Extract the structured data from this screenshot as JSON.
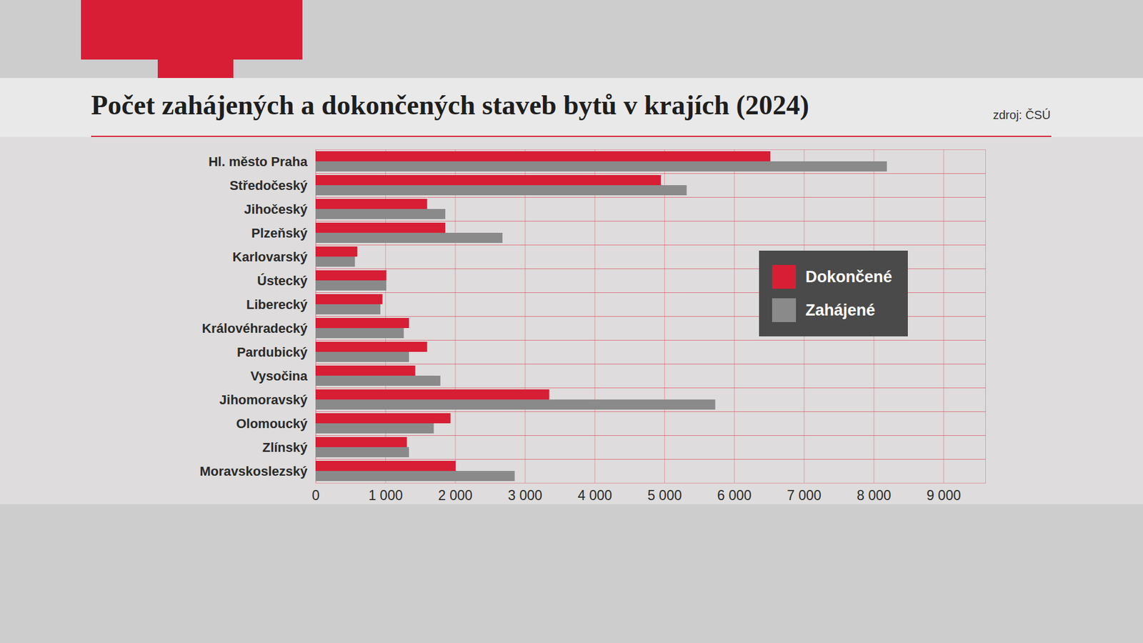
{
  "chart_data": {
    "type": "bar",
    "orientation": "horizontal",
    "title": "Počet zahájených a dokončených staveb bytů v krajích (2024)",
    "source": "zdroj: ČSÚ",
    "categories": [
      "Hl. město Praha",
      "Středočeský",
      "Jihočeský",
      "Plzeňský",
      "Karlovarský",
      "Ústecký",
      "Liberecký",
      "Královéhradecký",
      "Pardubický",
      "Vysočina",
      "Jihomoravský",
      "Olomoucký",
      "Zlínský",
      "Moravskoslezský"
    ],
    "series": [
      {
        "name": "Dokončené",
        "color": "#d71e35",
        "values": [
          6520,
          4950,
          1600,
          1860,
          600,
          1015,
          960,
          1340,
          1600,
          1430,
          3350,
          1935,
          1310,
          2010
        ]
      },
      {
        "name": "Zahájené",
        "color": "#8a8a8a",
        "values": [
          8190,
          5320,
          1860,
          2680,
          565,
          1015,
          930,
          1265,
          1340,
          1790,
          5730,
          1695,
          1340,
          2855
        ]
      }
    ],
    "xlim": [
      0,
      9600
    ],
    "xticks": [
      0,
      {
        "value": 1000,
        "label": "1 000"
      },
      {
        "value": 2000,
        "label": "2 000"
      },
      {
        "value": 3000,
        "label": "3 000"
      },
      {
        "value": 4000,
        "label": "4 000"
      },
      {
        "value": 5000,
        "label": "5 000"
      },
      {
        "value": 6000,
        "label": "6 000"
      },
      {
        "value": 7000,
        "label": "7 000"
      },
      {
        "value": 8000,
        "label": "8 000"
      },
      {
        "value": 9000,
        "label": "9 000"
      }
    ],
    "grid": true,
    "legend": "right"
  }
}
